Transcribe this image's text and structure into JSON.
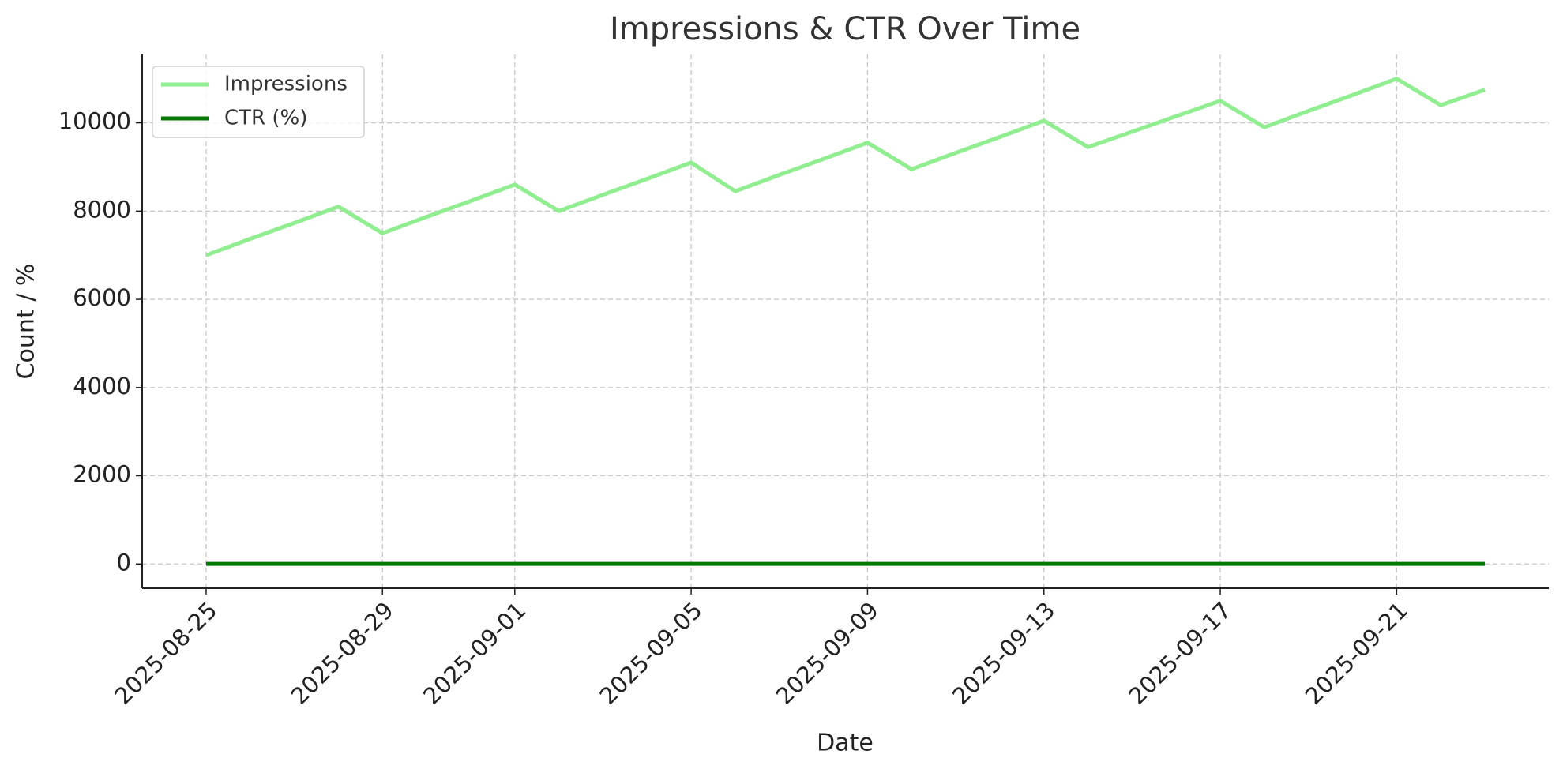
{
  "chart_data": {
    "type": "line",
    "title": "Impressions & CTR Over Time",
    "x_label": "Date",
    "y_label": "Count / %",
    "x": [
      "2025-08-25",
      "2025-08-26",
      "2025-08-27",
      "2025-08-28",
      "2025-08-29",
      "2025-08-30",
      "2025-08-31",
      "2025-09-01",
      "2025-09-02",
      "2025-09-03",
      "2025-09-04",
      "2025-09-05",
      "2025-09-06",
      "2025-09-07",
      "2025-09-08",
      "2025-09-09",
      "2025-09-10",
      "2025-09-11",
      "2025-09-12",
      "2025-09-13",
      "2025-09-14",
      "2025-09-15",
      "2025-09-16",
      "2025-09-17",
      "2025-09-18",
      "2025-09-19",
      "2025-09-20",
      "2025-09-21",
      "2025-09-22",
      "2025-09-23"
    ],
    "series": [
      {
        "name": "Impressions",
        "color": "#90ee90",
        "values": [
          7000,
          7370,
          7730,
          8100,
          7500,
          7870,
          8230,
          8600,
          8000,
          8370,
          8730,
          9100,
          8450,
          8820,
          9180,
          9550,
          8950,
          9320,
          9680,
          10050,
          9450,
          9800,
          10150,
          10500,
          9900,
          10270,
          10630,
          11000,
          10400,
          10750
        ]
      },
      {
        "name": "CTR (%)",
        "color": "#007a00",
        "values": [
          3.1,
          3.0,
          3.2,
          3.3,
          2.9,
          3.0,
          3.1,
          3.2,
          3.0,
          3.1,
          3.3,
          3.2,
          2.9,
          3.0,
          3.1,
          3.2,
          3.0,
          3.1,
          3.2,
          3.3,
          2.9,
          3.0,
          3.1,
          3.2,
          3.0,
          3.1,
          3.2,
          3.3,
          3.0,
          3.1
        ]
      }
    ],
    "xticks": [
      "2025-08-25",
      "2025-08-29",
      "2025-09-01",
      "2025-09-05",
      "2025-09-09",
      "2025-09-13",
      "2025-09-17",
      "2025-09-21"
    ],
    "ylim": [
      -550,
      11550
    ],
    "yticks": [
      0,
      2000,
      4000,
      6000,
      8000,
      10000
    ],
    "grid": true,
    "legend": "upper left"
  }
}
